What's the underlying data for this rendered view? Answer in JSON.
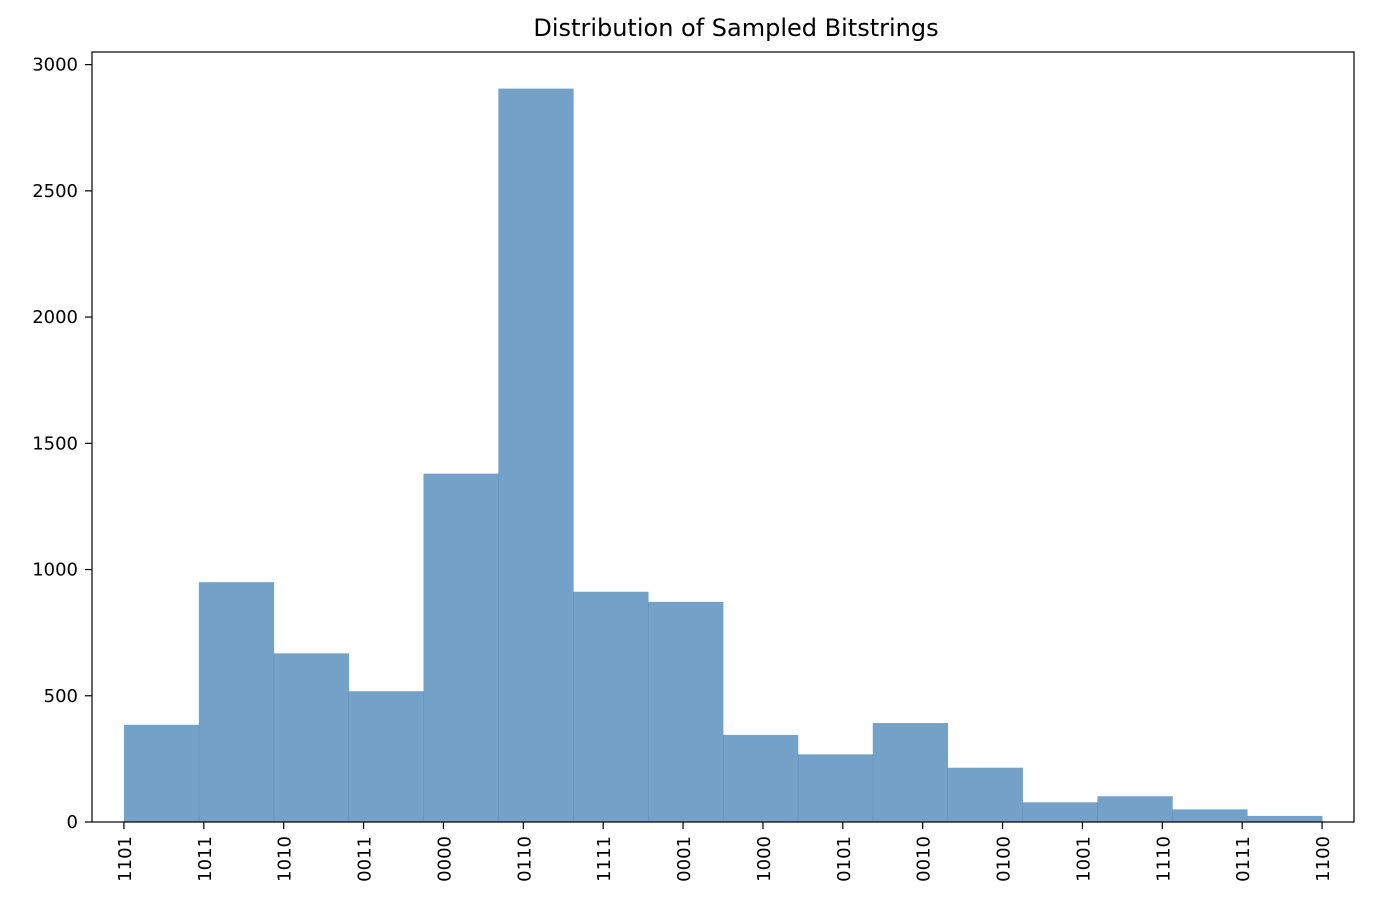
{
  "chart_data": {
    "type": "bar",
    "title": "Distribution of Sampled Bitstrings",
    "xlabel": "",
    "ylabel": "",
    "x_tick_labels": [
      "1101",
      "1011",
      "1010",
      "0011",
      "0000",
      "0110",
      "1111",
      "0001",
      "1000",
      "0101",
      "0010",
      "0100",
      "1001",
      "1110",
      "0111",
      "1100"
    ],
    "x_range": [
      -0.4,
      15.4
    ],
    "bins": [
      {
        "start": 0.0,
        "end": 0.9375,
        "value": 385
      },
      {
        "start": 0.9375,
        "end": 1.875,
        "value": 950
      },
      {
        "start": 1.875,
        "end": 2.8125,
        "value": 668
      },
      {
        "start": 2.8125,
        "end": 3.75,
        "value": 518
      },
      {
        "start": 3.75,
        "end": 4.6875,
        "value": 1380
      },
      {
        "start": 4.6875,
        "end": 5.625,
        "value": 2905
      },
      {
        "start": 5.625,
        "end": 6.5625,
        "value": 912
      },
      {
        "start": 6.5625,
        "end": 7.5,
        "value": 872
      },
      {
        "start": 7.5,
        "end": 8.4375,
        "value": 345
      },
      {
        "start": 8.4375,
        "end": 9.375,
        "value": 268
      },
      {
        "start": 9.375,
        "end": 10.3125,
        "value": 392
      },
      {
        "start": 10.3125,
        "end": 11.25,
        "value": 215
      },
      {
        "start": 11.25,
        "end": 12.1875,
        "value": 78
      },
      {
        "start": 12.1875,
        "end": 13.125,
        "value": 102
      },
      {
        "start": 13.125,
        "end": 14.0625,
        "value": 50
      },
      {
        "start": 14.0625,
        "end": 15.0,
        "value": 24
      }
    ],
    "y_ticks": [
      0,
      500,
      1000,
      1500,
      2000,
      2500,
      3000
    ],
    "ylim": [
      0,
      3050
    ],
    "grid": false,
    "legend": "none",
    "bar_color": "#4682b4"
  }
}
